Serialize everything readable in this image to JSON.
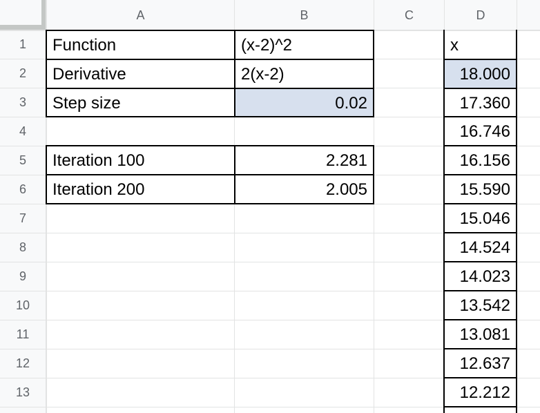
{
  "columns": [
    "A",
    "B",
    "C",
    "D"
  ],
  "rows": [
    "1",
    "2",
    "3",
    "4",
    "5",
    "6",
    "7",
    "8",
    "9",
    "10",
    "11",
    "12",
    "13"
  ],
  "cells": {
    "A1": "Function",
    "B1": "(x-2)^2",
    "A2": "Derivative",
    "B2": "2(x-2)",
    "A3": "Step size",
    "B3": "0.02",
    "A5": "Iteration 100",
    "B5": "2.281",
    "A6": "Iteration 200",
    "B6": "2.005"
  },
  "column_d": {
    "header": "x",
    "values": [
      "18.000",
      "17.360",
      "16.746",
      "16.156",
      "15.590",
      "15.046",
      "14.524",
      "14.023",
      "13.542",
      "13.081",
      "12.637",
      "12.212"
    ]
  },
  "colors": {
    "highlight": "#d7e0ee",
    "gridline": "#e2e3e3",
    "header_bg": "#f8f9fa",
    "header_text": "#5f6368"
  }
}
